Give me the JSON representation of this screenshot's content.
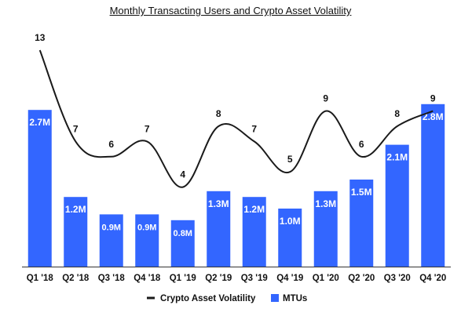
{
  "chart_data": {
    "type": "bar",
    "title": "Monthly Transacting Users and Crypto Asset Volatility",
    "categories": [
      "Q1 '18",
      "Q2 '18",
      "Q3 '18",
      "Q4 '18",
      "Q1 '19",
      "Q2 '19",
      "Q3 '19",
      "Q4 '19",
      "Q1 '20",
      "Q2 '20",
      "Q3 '20",
      "Q4 '20"
    ],
    "series": [
      {
        "name": "MTUs",
        "type": "bar",
        "color": "#3366ff",
        "values": [
          2.7,
          1.2,
          0.9,
          0.9,
          0.8,
          1.3,
          1.2,
          1.0,
          1.3,
          1.5,
          2.1,
          2.8
        ],
        "labels": [
          "2.7M",
          "1.2M",
          "0.9M",
          "0.9M",
          "0.8M",
          "1.3M",
          "1.2M",
          "1.0M",
          "1.3M",
          "1.5M",
          "2.1M",
          "2.8M"
        ]
      },
      {
        "name": "Crypto Asset Volatility",
        "type": "line",
        "color": "#1a1a1a",
        "values": [
          13,
          7,
          6,
          7,
          4,
          8,
          7,
          5,
          9,
          6,
          8,
          9
        ],
        "labels": [
          "13",
          "7",
          "6",
          "7",
          "4",
          "8",
          "7",
          "5",
          "9",
          "6",
          "8",
          "9"
        ]
      }
    ],
    "legend": "bottom",
    "grid": false
  }
}
